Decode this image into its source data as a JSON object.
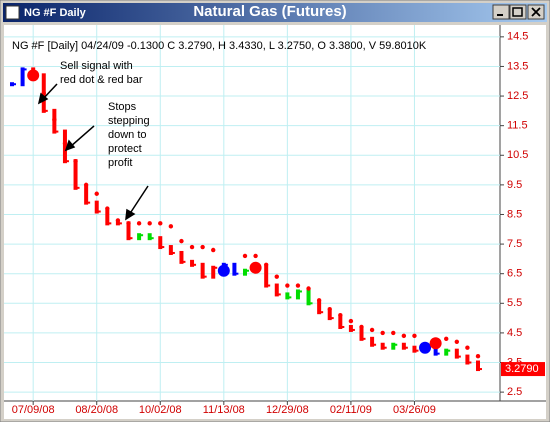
{
  "window": {
    "caption": "NG #F Daily",
    "title": "Natural Gas (Futures)"
  },
  "chart_data": {
    "type": "bar",
    "header": "NG #F [Daily] 04/24/09  -0.1300 C 3.2790, H 3.4330, L 3.2750, O 3.3800, V 59.8010K",
    "annotations": [
      {
        "lines": [
          "Sell signal with",
          "red dot & red bar"
        ]
      },
      {
        "lines": [
          "Stops",
          "stepping",
          "down to",
          "protect",
          "profit"
        ]
      }
    ],
    "categories": [
      null,
      null,
      "07/09/08",
      null,
      null,
      null,
      null,
      null,
      "08/20/08",
      null,
      null,
      null,
      null,
      null,
      "10/02/08",
      null,
      null,
      null,
      null,
      null,
      "11/13/08",
      null,
      null,
      null,
      null,
      null,
      "12/29/08",
      null,
      null,
      null,
      null,
      null,
      "02/11/09",
      null,
      null,
      null,
      null,
      null,
      "03/26/09",
      null,
      null,
      null,
      null,
      null,
      null
    ],
    "ylim": [
      2.2,
      14.9
    ],
    "yticks": [
      2.5,
      3.5,
      4.5,
      5.5,
      6.5,
      7.5,
      8.5,
      9.5,
      10.5,
      11.5,
      12.5,
      13.5,
      14.5
    ],
    "grid": true,
    "series": [
      {
        "type": "bar",
        "colors": [
          "#0000ff",
          "#0000ff",
          "#ff0000",
          "#ff0000",
          "#ff0000",
          "#ff0000",
          "#ff0000",
          "#ff0000",
          "#ff0000",
          "#ff0000",
          "#ff0000",
          "#ff0000",
          "#00dd00",
          "#00dd00",
          "#ff0000",
          "#ff0000",
          "#ff0000",
          "#ff0000",
          "#ff0000",
          "#ff0000",
          "#0000ff",
          "#0000ff",
          "#00dd00",
          "#ff0000",
          "#ff0000",
          "#ff0000",
          "#00dd00",
          "#00dd00",
          "#00dd00",
          "#ff0000",
          "#ff0000",
          "#ff0000",
          "#ff0000",
          "#ff0000",
          "#ff0000",
          "#ff0000",
          "#00dd00",
          "#ff0000",
          "#ff0000",
          "#0000ff",
          "#0000ff",
          "#00dd00",
          "#ff0000",
          "#ff0000",
          "#ff0000"
        ],
        "values": [
          12.9,
          13.4,
          13.2,
          12.0,
          11.3,
          10.3,
          9.4,
          8.9,
          8.6,
          8.2,
          8.2,
          7.7,
          7.8,
          7.7,
          7.4,
          7.2,
          6.9,
          6.8,
          6.4,
          6.7,
          6.8,
          6.5,
          6.6,
          6.7,
          6.1,
          5.8,
          5.7,
          5.9,
          5.5,
          5.2,
          5.0,
          4.7,
          4.6,
          4.3,
          4.1,
          4.0,
          4.1,
          4.0,
          3.9,
          3.9,
          3.8,
          3.9,
          3.7,
          3.5,
          3.279
        ],
        "value_labels": [
          null,
          null,
          null,
          null,
          null,
          null,
          null,
          null,
          null,
          null,
          null,
          null,
          null,
          null,
          null,
          null,
          null,
          null,
          null,
          null,
          null,
          null,
          null,
          null,
          null,
          null,
          null,
          null,
          null,
          null,
          null,
          null,
          null,
          null,
          null,
          null,
          null,
          null,
          null,
          null,
          null,
          null,
          null,
          null,
          "3.2790"
        ]
      },
      {
        "type": "dots",
        "color": "#ff0000",
        "values": [
          null,
          null,
          null,
          12.6,
          11.7,
          10.9,
          10.3,
          9.5,
          9.2,
          8.7,
          8.3,
          8.2,
          8.2,
          8.2,
          8.2,
          8.1,
          7.6,
          7.4,
          7.4,
          7.3,
          null,
          null,
          7.1,
          7.1,
          6.8,
          6.4,
          6.1,
          6.1,
          6.0,
          5.6,
          5.3,
          5.1,
          4.9,
          4.7,
          4.6,
          4.5,
          4.5,
          4.4,
          4.4,
          null,
          null,
          4.3,
          4.2,
          4.0,
          3.7127
        ]
      },
      {
        "type": "signal",
        "colors": [
          null,
          null,
          "#ff0000",
          null,
          null,
          null,
          null,
          null,
          null,
          null,
          null,
          null,
          null,
          null,
          null,
          null,
          null,
          null,
          null,
          null,
          "#0000ff",
          null,
          null,
          "#ff0000",
          null,
          null,
          null,
          null,
          null,
          null,
          null,
          null,
          null,
          null,
          null,
          null,
          null,
          null,
          null,
          "#0000ff",
          "#ff0000",
          null,
          null,
          null,
          null
        ],
        "values": [
          null,
          null,
          13.2,
          null,
          null,
          null,
          null,
          null,
          null,
          null,
          null,
          null,
          null,
          null,
          null,
          null,
          null,
          null,
          null,
          null,
          6.6,
          null,
          null,
          6.7,
          null,
          null,
          null,
          null,
          null,
          null,
          null,
          null,
          null,
          null,
          null,
          null,
          null,
          null,
          null,
          4.0,
          4.15,
          null,
          null,
          null,
          null
        ]
      }
    ]
  }
}
